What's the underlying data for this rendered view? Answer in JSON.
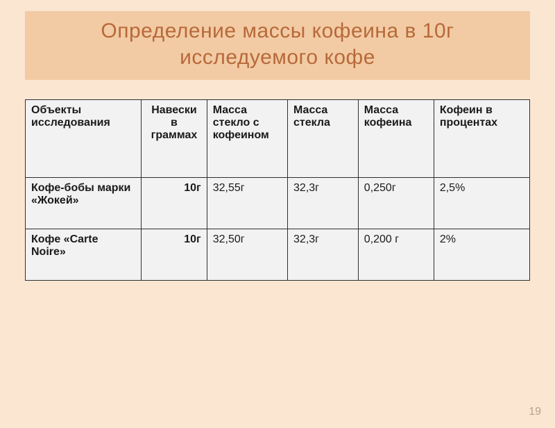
{
  "title_line1": "Определение  массы кофеина в  10г",
  "title_line2": "исследуемого кофе",
  "page_number": "19",
  "colors": {
    "page_bg": "#fbe6d2",
    "title_bg": "#f2cba4",
    "title_text": "#b8693a",
    "table_bg": "#f2f2f2",
    "border": "#2f2f2f",
    "page_num": "#b9a18c"
  },
  "table": {
    "columns": [
      {
        "label": "Объекты исследования",
        "align": "left",
        "width_pct": 23
      },
      {
        "label": "Навески в граммах",
        "align": "center",
        "width_pct": 13
      },
      {
        "label": "Масса стекло с кофеином",
        "align": "left",
        "width_pct": 16
      },
      {
        "label": "Масса стекла",
        "align": "left",
        "width_pct": 14
      },
      {
        "label": "Масса кофеина",
        "align": "left",
        "width_pct": 15
      },
      {
        "label": "Кофеин в процентах",
        "align": "left",
        "width_pct": 19
      }
    ],
    "rows": [
      {
        "object": "Кофе-бобы марки «Жокей»",
        "sample": "10г",
        "glass_with_caffeine": "32,55г",
        "glass": "32,3г",
        "caffeine_mass": "0,250г",
        "caffeine_pct": "2,5%"
      },
      {
        "object": "Кофе «Carte Noire»",
        "sample": "10г",
        "glass_with_caffeine": "32,50г",
        "glass": "32,3г",
        "caffeine_mass": "0,200 г",
        "caffeine_pct": "2%"
      }
    ]
  }
}
